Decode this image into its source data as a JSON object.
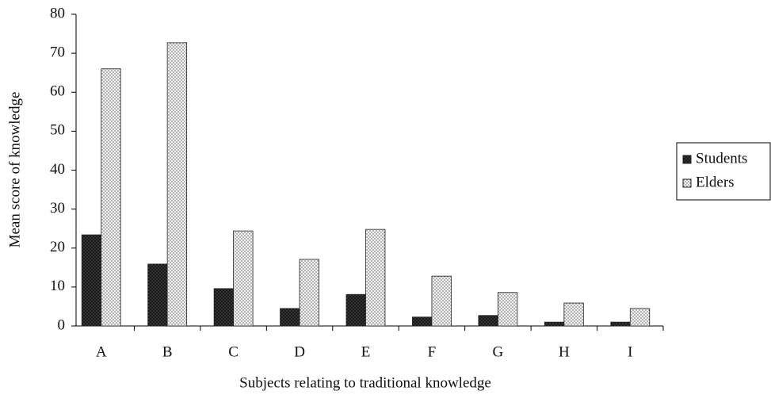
{
  "chart_data": {
    "type": "bar",
    "x_label": "Subjects relating to traditional knowledge",
    "y_label": "Mean score of knowledge",
    "categories": [
      "A",
      "B",
      "C",
      "D",
      "E",
      "F",
      "G",
      "H",
      "I"
    ],
    "series": [
      {
        "name": "Students",
        "color": "#3a3a3a",
        "values": [
          23.4,
          15.9,
          9.6,
          4.5,
          8.1,
          2.3,
          2.7,
          1.0,
          1.0
        ]
      },
      {
        "name": "Elders",
        "color": "#f2f2f2",
        "values": [
          66.0,
          72.7,
          24.4,
          17.1,
          24.8,
          12.8,
          8.6,
          5.9,
          4.5
        ]
      }
    ],
    "ylim": [
      0,
      80
    ],
    "yticks": [
      0,
      10,
      20,
      30,
      40,
      50,
      60,
      70,
      80
    ],
    "legend": "right"
  }
}
